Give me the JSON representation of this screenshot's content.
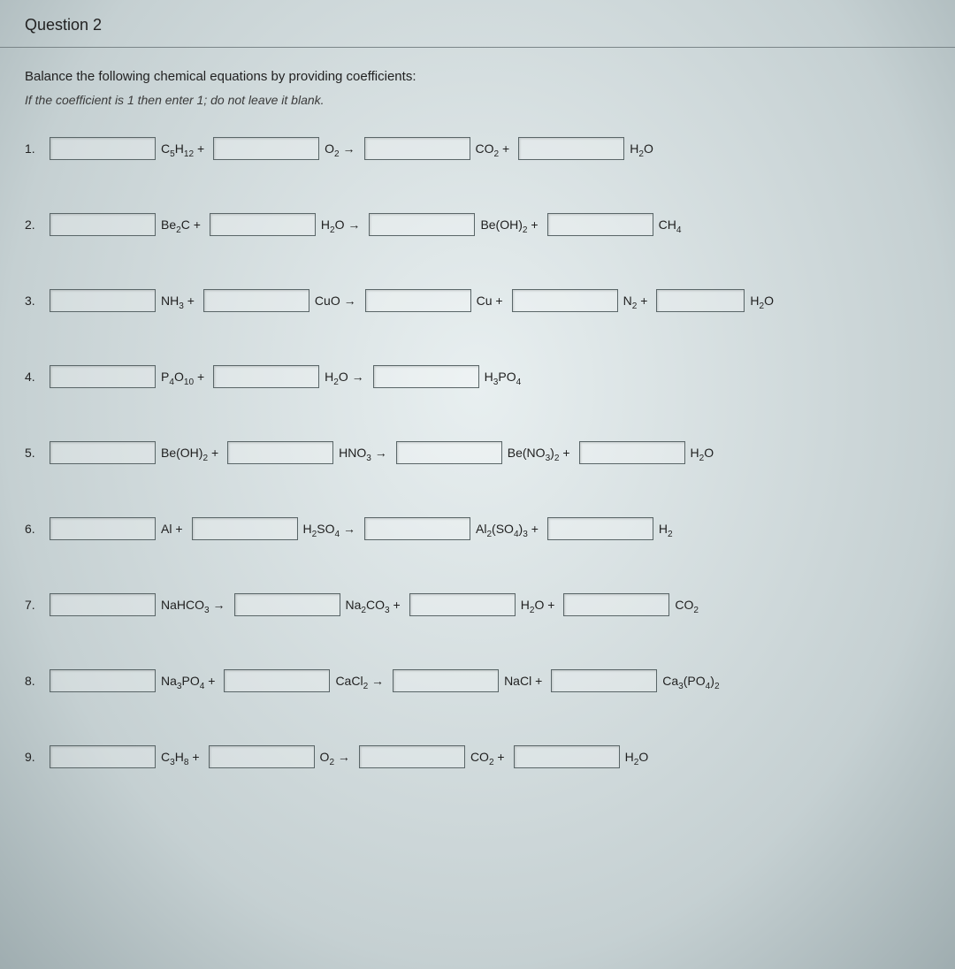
{
  "header": {
    "title": "Question 2"
  },
  "instructions": {
    "line1": "Balance the following chemical equations by providing coefficients:",
    "line2": "If the coefficient is 1 then enter 1; do not leave it blank."
  },
  "equations": [
    {
      "n": "1.",
      "parts": [
        "C₅H₁₂ +",
        "O₂ →",
        "CO₂ +",
        "H₂O"
      ],
      "boxes": 4,
      "extra": null
    },
    {
      "n": "2.",
      "parts": [
        "Be₂C +",
        "H₂O →",
        "Be(OH)₂ +",
        "CH₄"
      ],
      "boxes": 4,
      "extra": null
    },
    {
      "n": "3.",
      "parts": [
        "NH₃ +",
        "CuO →",
        "Cu +",
        "N₂ +",
        "H₂O"
      ],
      "boxes": 5,
      "extra": null
    },
    {
      "n": "4.",
      "parts": [
        "P₄O₁₀ +",
        "H₂O →",
        "H₃PO₄"
      ],
      "boxes": 3,
      "extra": null
    },
    {
      "n": "5.",
      "parts": [
        "Be(OH)₂ +",
        "HNO₃ →",
        "Be(NO₃)₂ +",
        "H₂O"
      ],
      "boxes": 4,
      "extra": null
    },
    {
      "n": "6.",
      "parts": [
        "Al +",
        "H₂SO₄ →",
        "Al₂(SO₄)₃ +",
        "H₂"
      ],
      "boxes": 4,
      "extra": null
    },
    {
      "n": "7.",
      "parts": [
        "NaHCO₃ →",
        "Na₂CO₃ +",
        "H₂O +",
        "CO₂"
      ],
      "boxes": 4,
      "extra": null
    },
    {
      "n": "8.",
      "parts": [
        "Na₃PO₄ +",
        "CaCl₂ →",
        "NaCl +",
        "Ca₃(PO₄)₂"
      ],
      "boxes": 4,
      "extra": null
    },
    {
      "n": "9.",
      "parts": [
        "C₃H₈ +",
        "O₂ →",
        "CO₂ +",
        "H₂O"
      ],
      "boxes": 4,
      "extra": null
    }
  ]
}
